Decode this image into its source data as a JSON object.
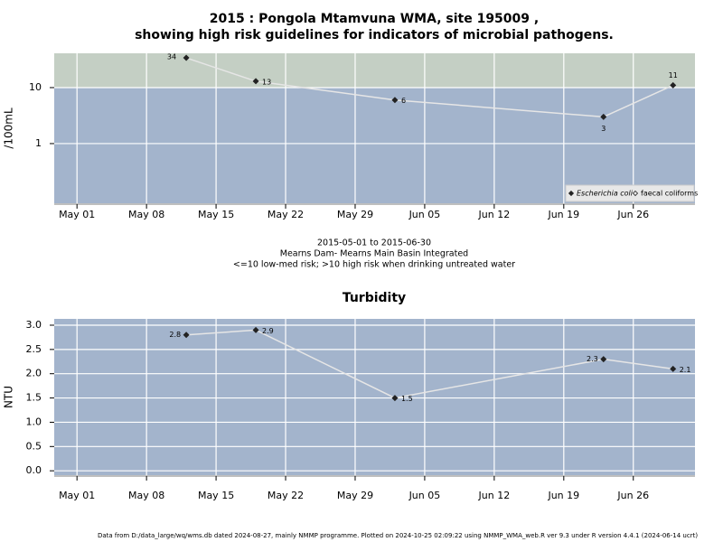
{
  "chart_data": [
    {
      "type": "line",
      "title": [
        "2015 : Pongola Mtamvuna WMA, site 195009 ,",
        "showing high risk guidelines for indicators of microbial pathogens."
      ],
      "y_label": "/100mL",
      "notes": [
        "2015-05-01 to 2015-06-30",
        "Mearns Dam- Mearns Main Basin Integrated",
        "<=10 low-med risk; >10 high risk when drinking untreated water"
      ],
      "x": [
        "2015-05-12",
        "2015-05-19",
        "2015-06-02",
        "2015-06-23",
        "2015-06-30"
      ],
      "series": [
        {
          "name": "Escherichia coli",
          "color": "#222222",
          "values": [
            34,
            13,
            6,
            3,
            11
          ]
        },
        {
          "name": "faecal coliforms",
          "color": "#222222",
          "values": [
            null,
            null,
            null,
            null,
            null
          ]
        }
      ],
      "log_scale": true,
      "ylim": [
        0.086,
        41
      ],
      "yticks": [
        1,
        10
      ],
      "bands": [
        {
          "from": 10,
          "to": 41,
          "color": "#c4cfc4"
        }
      ],
      "xlim": [
        "2015-04-28T17:00",
        "2015-07-02T05:00"
      ],
      "xticks": [
        {
          "value": "2015-05-01",
          "label": "May 01"
        },
        {
          "value": "2015-05-08",
          "label": "May 08"
        },
        {
          "value": "2015-05-15",
          "label": "May 15"
        },
        {
          "value": "2015-05-22",
          "label": "May 22"
        },
        {
          "value": "2015-05-29",
          "label": "May 29"
        },
        {
          "value": "2015-06-05",
          "label": "Jun 05"
        },
        {
          "value": "2015-06-12",
          "label": "Jun 12"
        },
        {
          "value": "2015-06-19",
          "label": "Jun 19"
        },
        {
          "value": "2015-06-26",
          "label": "Jun 26"
        }
      ],
      "grid": true,
      "legend": "bottom-right"
    },
    {
      "type": "line",
      "title": [
        "Turbidity"
      ],
      "y_label": "NTU",
      "x": [
        "2015-05-12",
        "2015-05-19",
        "2015-06-02",
        "2015-06-23",
        "2015-06-30"
      ],
      "series": [
        {
          "name": "Turbidity",
          "color": "#222222",
          "values": [
            2.8,
            2.9,
            1.5,
            2.3,
            2.1
          ]
        }
      ],
      "log_scale": false,
      "ylim": [
        -0.09,
        3.13
      ],
      "yticks": [
        {
          "value": 0,
          "label": "0.0"
        },
        {
          "value": 0.5,
          "label": "0.5"
        },
        {
          "value": 1,
          "label": "1.0"
        },
        {
          "value": 1.5,
          "label": "1.5"
        },
        {
          "value": 2,
          "label": "2.0"
        },
        {
          "value": 2.5,
          "label": "2.5"
        },
        {
          "value": 3,
          "label": "3.0"
        }
      ],
      "xlim": [
        "2015-04-28T17:00",
        "2015-07-02T05:00"
      ],
      "xticks": [
        {
          "value": "2015-05-01",
          "label": "May 01"
        },
        {
          "value": "2015-05-08",
          "label": "May 08"
        },
        {
          "value": "2015-05-15",
          "label": "May 15"
        },
        {
          "value": "2015-05-22",
          "label": "May 22"
        },
        {
          "value": "2015-05-29",
          "label": "May 29"
        },
        {
          "value": "2015-06-05",
          "label": "Jun 05"
        },
        {
          "value": "2015-06-12",
          "label": "Jun 12"
        },
        {
          "value": "2015-06-19",
          "label": "Jun 19"
        },
        {
          "value": "2015-06-26",
          "label": "Jun 26"
        }
      ],
      "grid": true
    }
  ],
  "footer": "Data from D:/data_large/wq/wms.db dated 2024-08-27, mainly NMMP programme. Plotted on 2024-10-25 02:09:22 using NMMP_WMA_web.R ver 9.3 under R version 4.4.1 (2024-06-14 ucrt)"
}
